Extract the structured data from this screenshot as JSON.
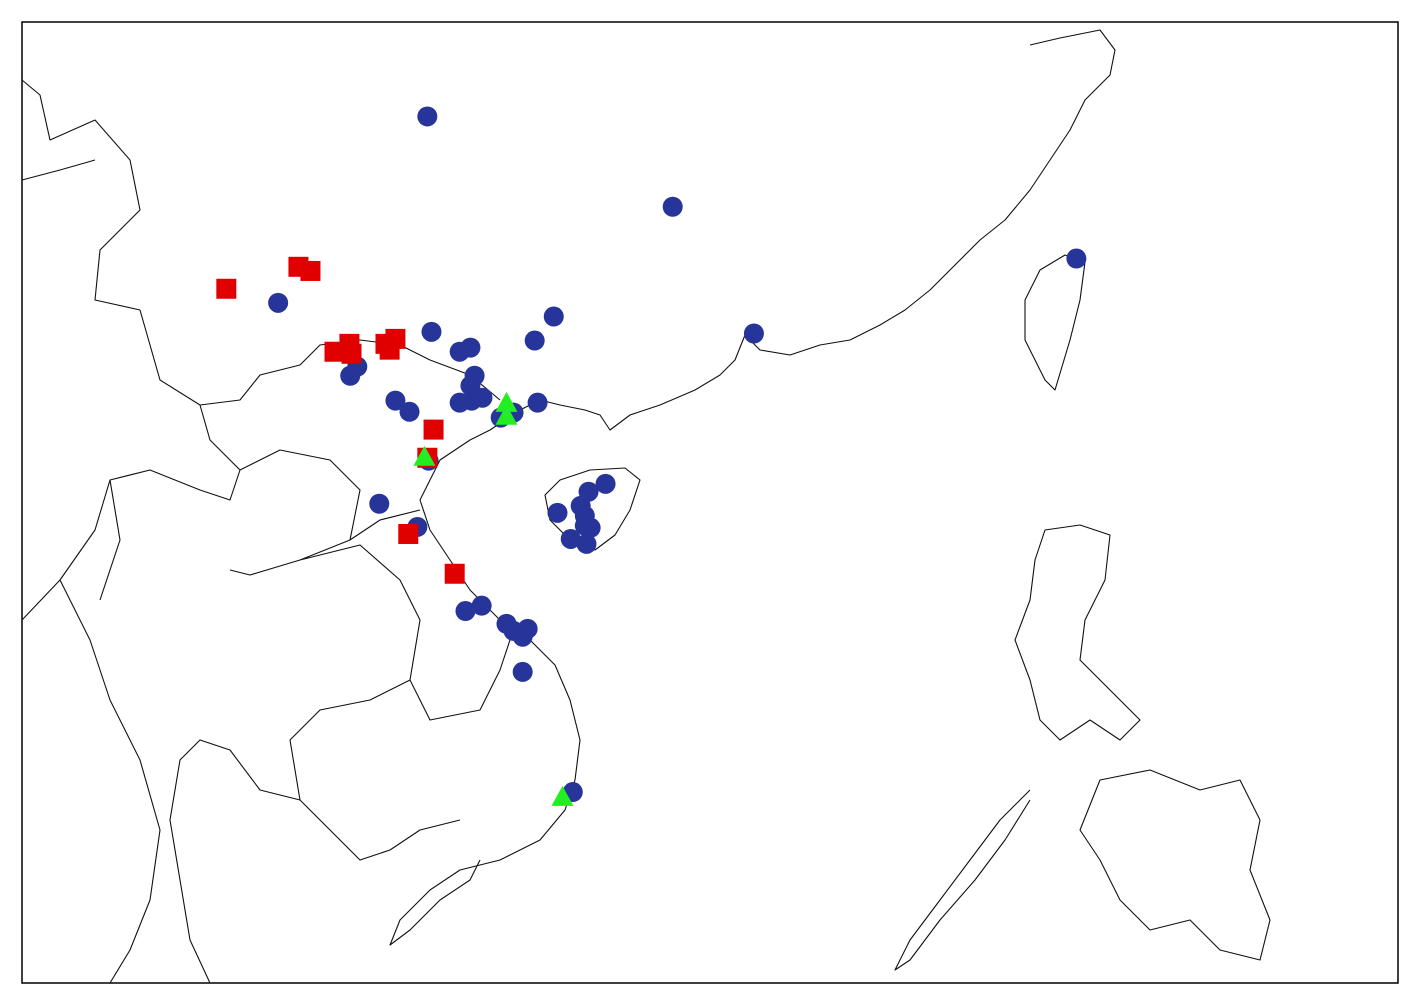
{
  "map": {
    "lon_range": [
      96.1,
      129.3
    ],
    "lat_range": [
      7.8,
      31.0
    ],
    "series": [
      {
        "marker": "circle",
        "color": "#27359b",
        "points": [
          [
            105.88,
            28.72
          ],
          [
            111.8,
            26.54
          ],
          [
            121.54,
            25.29
          ],
          [
            102.28,
            24.22
          ],
          [
            113.76,
            23.48
          ],
          [
            108.93,
            23.89
          ],
          [
            105.98,
            23.52
          ],
          [
            108.47,
            23.31
          ],
          [
            106.66,
            23.04
          ],
          [
            106.92,
            23.14
          ],
          [
            104.19,
            22.68
          ],
          [
            104.02,
            22.46
          ],
          [
            107.02,
            22.46
          ],
          [
            106.92,
            22.22
          ],
          [
            105.11,
            21.86
          ],
          [
            105.45,
            21.59
          ],
          [
            106.66,
            21.81
          ],
          [
            106.95,
            21.86
          ],
          [
            107.21,
            21.93
          ],
          [
            107.65,
            21.45
          ],
          [
            107.96,
            21.57
          ],
          [
            108.54,
            21.81
          ],
          [
            105.91,
            20.41
          ],
          [
            110.18,
            19.85
          ],
          [
            109.77,
            19.66
          ],
          [
            109.58,
            19.32
          ],
          [
            109.02,
            19.15
          ],
          [
            109.68,
            19.08
          ],
          [
            109.82,
            18.79
          ],
          [
            109.68,
            18.84
          ],
          [
            109.34,
            18.52
          ],
          [
            109.72,
            18.4
          ],
          [
            104.72,
            19.37
          ],
          [
            105.64,
            18.81
          ],
          [
            106.8,
            16.78
          ],
          [
            107.19,
            16.91
          ],
          [
            107.79,
            16.47
          ],
          [
            107.96,
            16.3
          ],
          [
            108.3,
            16.35
          ],
          [
            108.18,
            16.16
          ],
          [
            108.18,
            15.31
          ],
          [
            109.39,
            12.41
          ]
        ]
      },
      {
        "marker": "square",
        "color": "#e00000",
        "points": [
          [
            101.03,
            24.56
          ],
          [
            102.77,
            25.09
          ],
          [
            103.06,
            24.99
          ],
          [
            104.0,
            23.23
          ],
          [
            103.64,
            23.04
          ],
          [
            104.05,
            22.99
          ],
          [
            105.11,
            23.35
          ],
          [
            104.87,
            23.23
          ],
          [
            104.97,
            23.09
          ],
          [
            106.03,
            21.16
          ],
          [
            105.88,
            20.48
          ],
          [
            105.42,
            18.64
          ],
          [
            106.54,
            17.68
          ]
        ]
      },
      {
        "marker": "triangle",
        "color": "#22ee22",
        "points": [
          [
            107.79,
            21.78
          ],
          [
            107.79,
            21.47
          ],
          [
            105.81,
            20.48
          ],
          [
            109.14,
            12.27
          ]
        ]
      }
    ]
  }
}
